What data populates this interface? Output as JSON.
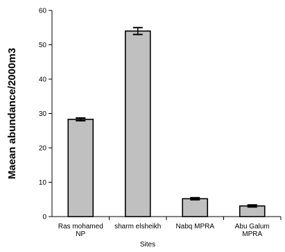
{
  "chart_data": {
    "type": "bar",
    "categories": [
      [
        "Ras mohamed",
        "NP"
      ],
      [
        "sharm elsheikh"
      ],
      [
        "Nabq MPRA"
      ],
      [
        "Abu Galum",
        "MPRA"
      ]
    ],
    "values": [
      28.3,
      54.0,
      5.2,
      3.1
    ],
    "errors": [
      0.4,
      1.0,
      0.3,
      0.3
    ],
    "ylim": [
      0,
      60
    ],
    "yticks": [
      0,
      10,
      20,
      30,
      40,
      50,
      60
    ],
    "xlabel": "Sites",
    "ylabel": "Maean abundance/2000m3",
    "bar_color": "#c0c0c0",
    "bar_edge_color": "#000000",
    "grid": false,
    "legend": "none"
  }
}
